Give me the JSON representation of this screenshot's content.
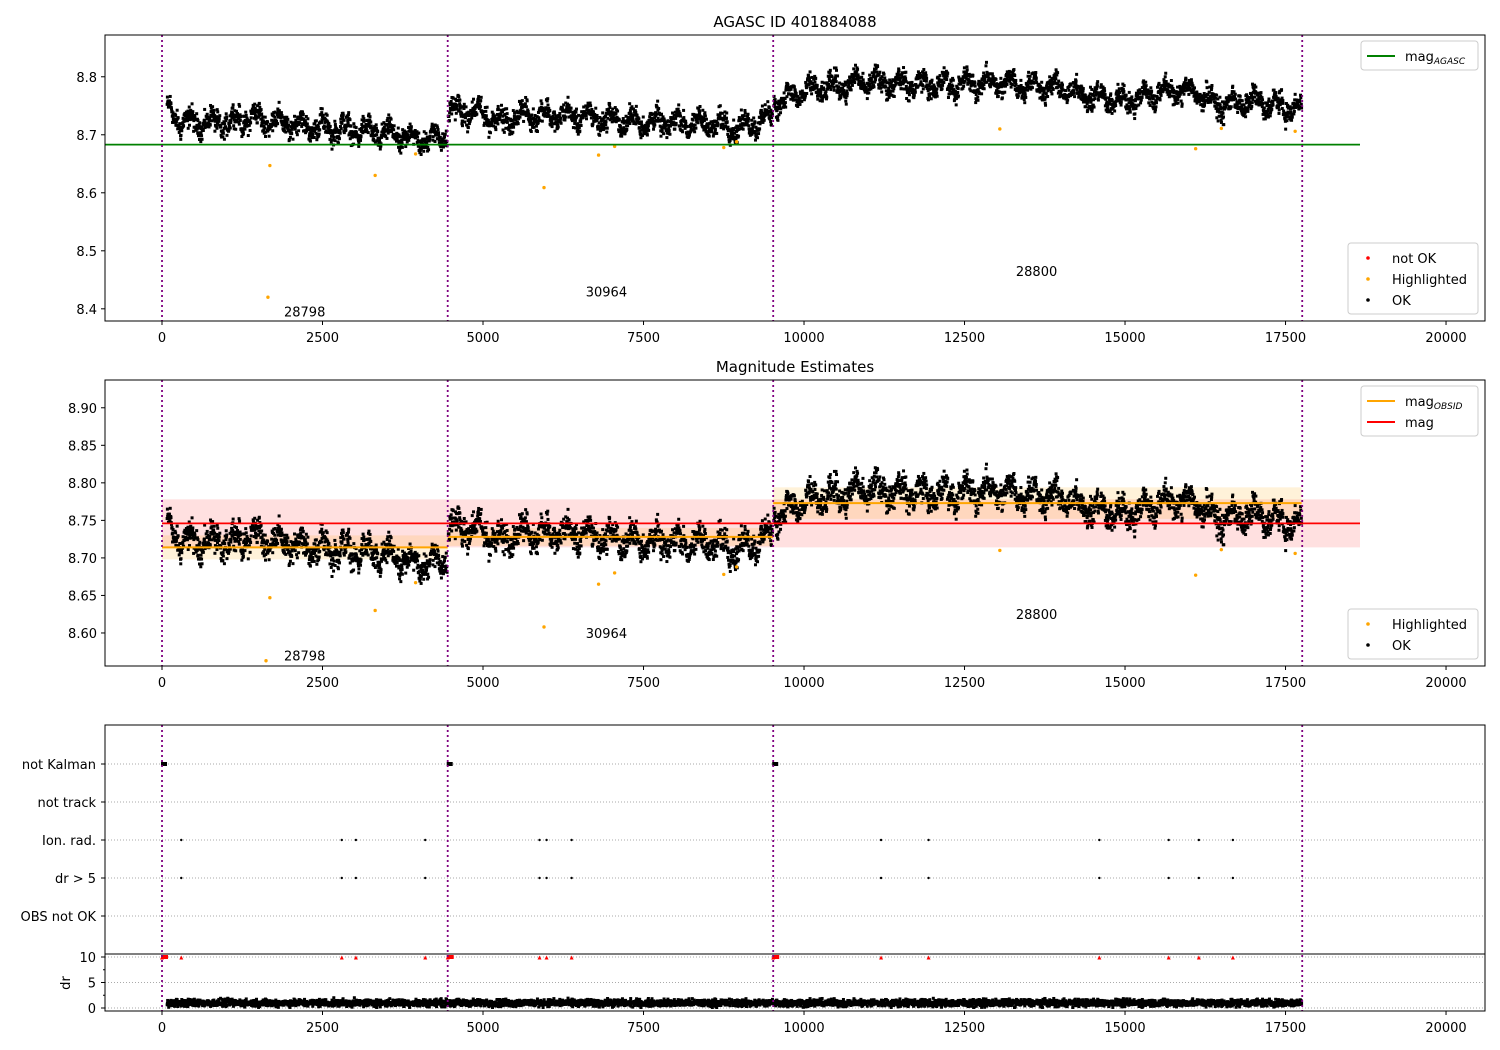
{
  "chart_data": [
    {
      "type": "scatter",
      "title": "AGASC ID 401884088",
      "xlim": [
        -888,
        20607
      ],
      "ylim": [
        8.379,
        8.872
      ],
      "xticks": [
        0,
        2500,
        5000,
        7500,
        10000,
        12500,
        15000,
        17500,
        20000
      ],
      "yticks": [
        8.4,
        8.5,
        8.6,
        8.7,
        8.8
      ],
      "hlines": [
        {
          "label": "mag",
          "sub": "AGASC",
          "value": 8.683,
          "x": [
            -888,
            18660
          ],
          "color": "#008000"
        }
      ],
      "obsid_labels": [
        {
          "text": "28798",
          "x": 1900,
          "y": 8.395
        },
        {
          "text": "30964",
          "x": 6600,
          "y": 8.43
        },
        {
          "text": "28800",
          "x": 13300,
          "y": 8.465
        }
      ],
      "highlighted": [
        [
          1650,
          8.42
        ],
        [
          1680,
          8.647
        ],
        [
          3320,
          8.63
        ],
        [
          3950,
          8.667
        ],
        [
          5950,
          8.609
        ],
        [
          6800,
          8.665
        ],
        [
          7050,
          8.68
        ],
        [
          8750,
          8.678
        ],
        [
          8950,
          8.688
        ],
        [
          13050,
          8.71
        ],
        [
          16100,
          8.676
        ],
        [
          16500,
          8.711
        ],
        [
          17650,
          8.706
        ]
      ],
      "legend_top": [
        {
          "label": "mag",
          "sub": "AGASC",
          "color": "#008000",
          "kind": "line"
        }
      ],
      "legend_bottom": [
        {
          "label": "not OK",
          "color": "#ff0000"
        },
        {
          "label": "Highlighted",
          "color": "#ffa500"
        },
        {
          "label": "OK",
          "color": "#000000"
        }
      ]
    },
    {
      "type": "scatter",
      "title": "Magnitude Estimates",
      "xlim": [
        -888,
        20607
      ],
      "ylim": [
        8.556,
        8.937
      ],
      "xticks": [
        0,
        2500,
        5000,
        7500,
        10000,
        12500,
        15000,
        17500,
        20000
      ],
      "yticks": [
        8.6,
        8.65,
        8.7,
        8.75,
        8.8,
        8.85,
        8.9
      ],
      "mag": {
        "value": 8.746,
        "band": [
          8.714,
          8.778
        ],
        "x": [
          0,
          18660
        ],
        "color": "#ff0000"
      },
      "mag_obsid": [
        {
          "x": [
            0,
            4450
          ],
          "value": 8.714,
          "band": [
            8.698,
            8.73
          ]
        },
        {
          "x": [
            4450,
            9520
          ],
          "value": 8.728,
          "band": [
            8.716,
            8.74
          ]
        },
        {
          "x": [
            9520,
            17750
          ],
          "value": 8.773,
          "band": [
            8.752,
            8.794
          ]
        }
      ],
      "obsid_labels": [
        {
          "text": "28798",
          "x": 1900,
          "y": 8.57
        },
        {
          "text": "30964",
          "x": 6600,
          "y": 8.6
        },
        {
          "text": "28800",
          "x": 13300,
          "y": 8.625
        }
      ],
      "highlighted": [
        [
          1620,
          8.563
        ],
        [
          1680,
          8.647
        ],
        [
          3320,
          8.63
        ],
        [
          3950,
          8.667
        ],
        [
          5950,
          8.608
        ],
        [
          6800,
          8.665
        ],
        [
          7050,
          8.68
        ],
        [
          8750,
          8.678
        ],
        [
          8950,
          8.688
        ],
        [
          13050,
          8.71
        ],
        [
          16100,
          8.677
        ],
        [
          16500,
          8.711
        ],
        [
          17650,
          8.706
        ]
      ],
      "legend_top": [
        {
          "label": "mag",
          "sub": "OBSID",
          "color": "#ffa500",
          "kind": "line"
        },
        {
          "label": "mag",
          "sub": "",
          "color": "#ff0000",
          "kind": "line"
        }
      ],
      "legend_bottom": [
        {
          "label": "Highlighted",
          "color": "#ffa500"
        },
        {
          "label": "OK",
          "color": "#000000"
        }
      ]
    },
    {
      "type": "scatter",
      "title": "",
      "categories": [
        "not Kalman",
        "not track",
        "Ion. rad.",
        "dr > 5",
        "OBS not OK"
      ],
      "events_x": [
        300,
        2800,
        3020,
        4100,
        5880,
        5990,
        6380,
        11200,
        11940,
        14600,
        15680,
        16150,
        16680
      ],
      "not_kalman_x": [
        0,
        4450,
        9520
      ],
      "dr_ylabel": "dr",
      "dr_yticks": [
        0,
        5,
        10
      ],
      "dr_ylim": [
        -0.5,
        10.5
      ],
      "dr_clip": 10
    }
  ],
  "obs_boundaries": [
    0,
    4450,
    9520,
    17760
  ],
  "light_curve": {
    "segments": [
      {
        "obsid": "28798",
        "range": [
          80,
          4440
        ],
        "trend": [
          [
            80,
            8.745
          ],
          [
            300,
            8.722
          ],
          [
            1000,
            8.72
          ],
          [
            1400,
            8.73
          ],
          [
            2000,
            8.718
          ],
          [
            2800,
            8.71
          ],
          [
            3500,
            8.702
          ],
          [
            4000,
            8.692
          ],
          [
            4440,
            8.698
          ]
        ]
      },
      {
        "obsid": "30964",
        "range": [
          4460,
          9510
        ],
        "trend": [
          [
            4460,
            8.742
          ],
          [
            5000,
            8.737
          ],
          [
            5300,
            8.722
          ],
          [
            5600,
            8.735
          ],
          [
            6500,
            8.732
          ],
          [
            7000,
            8.726
          ],
          [
            7500,
            8.722
          ],
          [
            8500,
            8.72
          ],
          [
            9000,
            8.712
          ],
          [
            9510,
            8.732
          ]
        ]
      },
      {
        "obsid": "28800",
        "range": [
          9530,
          17750
        ],
        "trend": [
          [
            9530,
            8.755
          ],
          [
            10000,
            8.775
          ],
          [
            11000,
            8.792
          ],
          [
            12000,
            8.785
          ],
          [
            13000,
            8.79
          ],
          [
            14000,
            8.78
          ],
          [
            14500,
            8.765
          ],
          [
            15000,
            8.758
          ],
          [
            15500,
            8.772
          ],
          [
            16000,
            8.778
          ],
          [
            16500,
            8.75
          ],
          [
            17000,
            8.758
          ],
          [
            17750,
            8.742
          ]
        ]
      }
    ],
    "noise": 0.014,
    "dr_mean": 1.0
  }
}
